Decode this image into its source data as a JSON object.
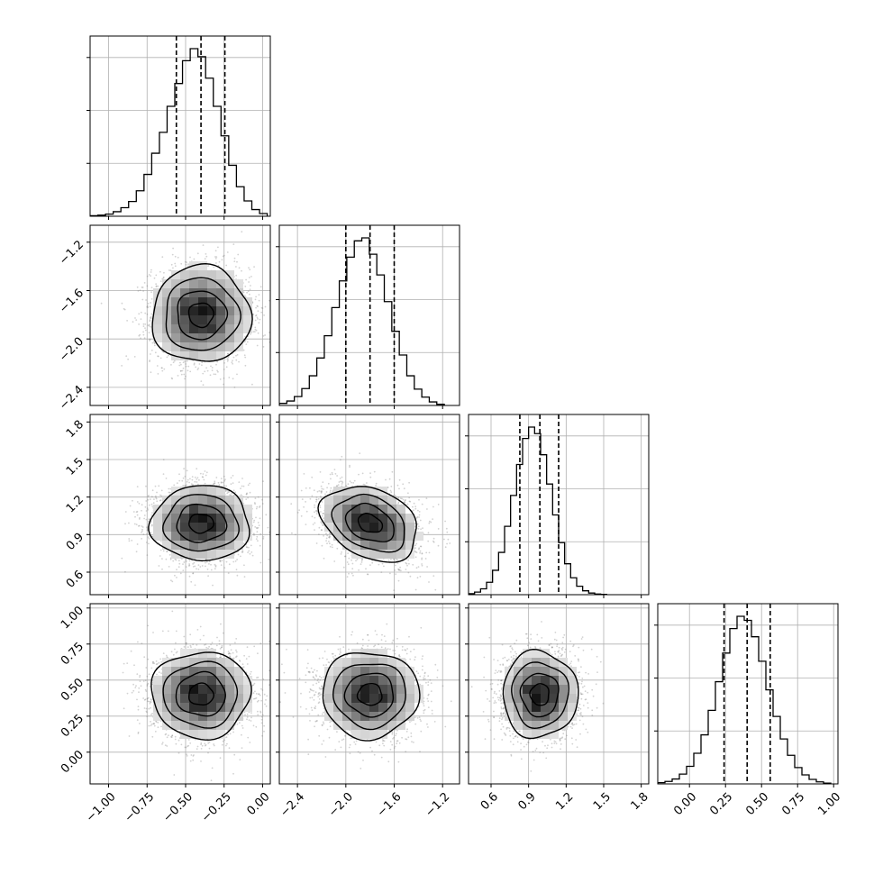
{
  "colors": {
    "background": "#ffffff",
    "frame": "#000000",
    "grid": "#b0b0b0",
    "scatter_points": "#7f7f7f",
    "density_dark": "#000000",
    "density_light": "#ffffff",
    "lines": "#000000"
  },
  "chart_data": {
    "type": "corner",
    "grid": true,
    "parameters": [
      {
        "ticks": [
          -1.0,
          -0.75,
          -0.5,
          -0.25,
          0.0
        ],
        "tick_labels": [
          "−1.00",
          "−0.75",
          "−0.50",
          "−0.25",
          "0.00"
        ],
        "range": [
          -1.12,
          0.05
        ],
        "mean": -0.4,
        "std": 0.16,
        "quantiles": [
          -0.56,
          -0.4,
          -0.245
        ]
      },
      {
        "ticks": [
          -2.4,
          -2.0,
          -1.6,
          -1.2
        ],
        "tick_labels": [
          "−2.4",
          "−2.0",
          "−1.6",
          "−1.2"
        ],
        "range": [
          -2.55,
          -1.06
        ],
        "mean": -1.8,
        "std": 0.2,
        "quantiles": [
          -2.0,
          -1.8,
          -1.6
        ]
      },
      {
        "ticks": [
          0.6,
          0.9,
          1.2,
          1.5,
          1.8
        ],
        "tick_labels": [
          "0.6",
          "0.9",
          "1.2",
          "1.5",
          "1.8"
        ],
        "range": [
          0.42,
          1.86
        ],
        "mean": 0.99,
        "std": 0.15,
        "quantiles": [
          0.83,
          0.99,
          1.14
        ]
      },
      {
        "ticks": [
          0.0,
          0.25,
          0.5,
          0.75,
          1.0
        ],
        "tick_labels": [
          "0.00",
          "0.25",
          "0.50",
          "0.75",
          "1.00"
        ],
        "range": [
          -0.22,
          1.03
        ],
        "mean": 0.4,
        "std": 0.15,
        "quantiles": [
          0.24,
          0.4,
          0.56
        ]
      }
    ],
    "histograms": [
      {
        "param": 0,
        "bin_edges": [
          -1.12,
          -1.07,
          -1.02,
          -0.97,
          -0.92,
          -0.87,
          -0.82,
          -0.77,
          -0.72,
          -0.67,
          -0.62,
          -0.57,
          -0.52,
          -0.47,
          -0.42,
          -0.37,
          -0.32,
          -0.27,
          -0.22,
          -0.17,
          -0.12,
          -0.07,
          -0.02,
          0.03
        ],
        "counts": [
          0.2,
          0.4,
          0.8,
          1.7,
          3.2,
          5.5,
          9.5,
          15.6,
          23.5,
          31.3,
          41.0,
          49.5,
          58.0,
          62.5,
          59.5,
          51.5,
          41.0,
          30.0,
          19.0,
          11.0,
          5.7,
          2.5,
          1.0
        ]
      },
      {
        "param": 1,
        "bin_edges": [
          -2.55,
          -2.488,
          -2.426,
          -2.364,
          -2.302,
          -2.24,
          -2.178,
          -2.116,
          -2.054,
          -1.992,
          -1.93,
          -1.868,
          -1.806,
          -1.744,
          -1.682,
          -1.62,
          -1.558,
          -1.496,
          -1.434,
          -1.372,
          -1.31,
          -1.248,
          -1.186
        ],
        "counts": [
          0.7,
          1.5,
          3.0,
          5.7,
          10.0,
          16.0,
          23.5,
          33.0,
          42.0,
          50.0,
          55.5,
          56.5,
          51.0,
          44.0,
          35.0,
          25.0,
          17.0,
          10.0,
          5.5,
          2.8,
          1.2,
          0.4
        ]
      },
      {
        "param": 2,
        "bin_edges": [
          0.42,
          0.468,
          0.516,
          0.564,
          0.612,
          0.66,
          0.708,
          0.756,
          0.804,
          0.852,
          0.9,
          0.948,
          0.996,
          1.044,
          1.092,
          1.14,
          1.188,
          1.236,
          1.284,
          1.332,
          1.38,
          1.428,
          1.476,
          1.524
        ],
        "counts": [
          0.3,
          0.8,
          1.8,
          3.8,
          7.5,
          13.0,
          21.0,
          30.5,
          40.0,
          48.0,
          51.5,
          49.5,
          43.0,
          34.0,
          24.5,
          16.0,
          9.5,
          5.2,
          2.6,
          1.2,
          0.5,
          0.2,
          0.1
        ]
      },
      {
        "param": 3,
        "bin_edges": [
          -0.22,
          -0.17,
          -0.12,
          -0.07,
          -0.02,
          0.03,
          0.08,
          0.13,
          0.18,
          0.23,
          0.28,
          0.33,
          0.38,
          0.43,
          0.48,
          0.53,
          0.58,
          0.63,
          0.68,
          0.73,
          0.78,
          0.83,
          0.88,
          0.93,
          0.98
        ],
        "counts": [
          0.3,
          0.6,
          1.2,
          2.4,
          4.3,
          7.5,
          12.0,
          18.0,
          25.0,
          32.0,
          38.0,
          41.0,
          40.0,
          36.0,
          30.0,
          23.0,
          16.5,
          11.0,
          7.0,
          4.0,
          2.2,
          1.1,
          0.5,
          0.2
        ]
      }
    ],
    "panels_2d": [
      {
        "x": 0,
        "y": 1,
        "rho": 0.0
      },
      {
        "x": 0,
        "y": 2,
        "rho": 0.0
      },
      {
        "x": 1,
        "y": 2,
        "rho": -0.3
      },
      {
        "x": 0,
        "y": 3,
        "rho": 0.0
      },
      {
        "x": 1,
        "y": 3,
        "rho": 0.0
      },
      {
        "x": 2,
        "y": 3,
        "rho": 0.0
      }
    ],
    "contour_levels_sigma": [
      0.5,
      1.0,
      1.5,
      2.0
    ]
  }
}
